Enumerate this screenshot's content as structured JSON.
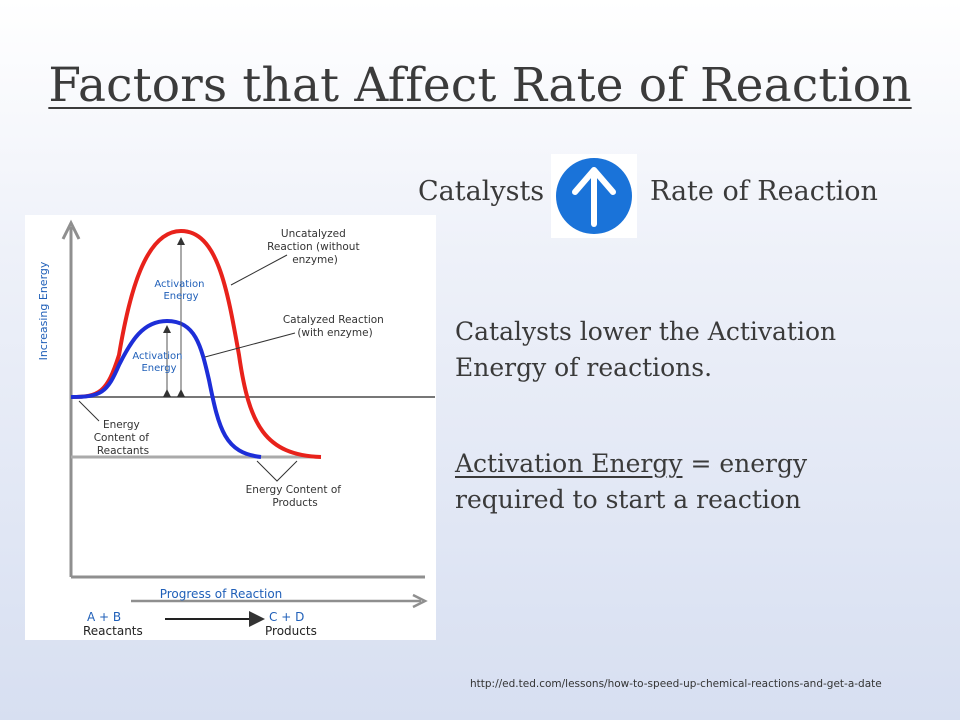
{
  "title": "Factors that Affect Rate of Reaction",
  "catalyst_row": {
    "left_text": "Catalysts",
    "right_text": "Rate of Reaction",
    "icon": "up-arrow-icon",
    "icon_color": "#1a73d9"
  },
  "paragraph1": "Catalysts lower the Activation Energy of reactions.",
  "paragraph2": {
    "term": "Activation Energy",
    "definition": " = energy required to start a reaction"
  },
  "source_url": "http://ed.ted.com/lessons/how-to-speed-up-chemical-reactions-and-get-a-date",
  "diagram": {
    "y_axis_label": "Increasing Energy",
    "x_axis_label": "Progress of Reaction",
    "uncatalyzed_label_1": "Uncatalyzed",
    "uncatalyzed_label_2": "Reaction (without",
    "uncatalyzed_label_3": "enzyme)",
    "catalyzed_label_1": "Catalyzed Reaction",
    "catalyzed_label_2": "(with enzyme)",
    "activation_energy_1": "Activation",
    "activation_energy_2": "Energy",
    "reactants_label_1": "Energy",
    "reactants_label_2": "Content of",
    "reactants_label_3": "Reactants",
    "products_label_1": "Energy Content of",
    "products_label_2": "Products",
    "eq_left": "A  +  B",
    "eq_left_sub": "Reactants",
    "eq_right": "C  +  D",
    "eq_right_sub": "Products",
    "colors": {
      "uncatalyzed": "#e8221b",
      "catalyzed": "#1d2ed8",
      "label_blue": "#1f5fb8",
      "axis": "#8f8f8f"
    }
  }
}
